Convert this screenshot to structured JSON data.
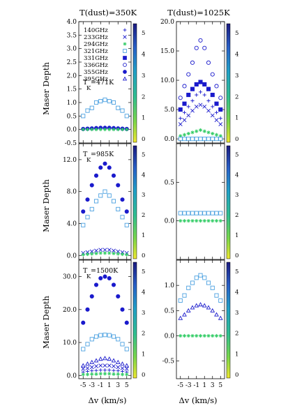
{
  "columns": [
    {
      "title": "T(dust)=350K"
    },
    {
      "title": "T(dust)=1025K"
    }
  ],
  "ylabel": "Maser Depth",
  "xlabel": "Δv (km/s)",
  "xticks": [
    "-5",
    "-3",
    "-1",
    "1",
    "3",
    "5"
  ],
  "colorbar_ticks": [
    "0",
    "1",
    "2",
    "3",
    "4",
    "5"
  ],
  "legend": [
    {
      "label": "140GHz",
      "marker": "plus"
    },
    {
      "label": "233GHz",
      "marker": "cross"
    },
    {
      "label": "294GHz",
      "marker": "star"
    },
    {
      "label": "321GHz",
      "marker": "square-open"
    },
    {
      "label": "331GHz",
      "marker": "square-filled"
    },
    {
      "label": "336GHz",
      "marker": "circle-open"
    },
    {
      "label": "355GHz",
      "marker": "circle-filled"
    },
    {
      "label": "395GHz",
      "marker": "triangle-open"
    }
  ],
  "colors": {
    "blue": "#1a1acc",
    "lightblue": "#4aa0e0",
    "green": "#33cc66",
    "darkblue": "#1a1a99"
  },
  "chart_data": [
    {
      "type": "scatter",
      "panel": "row1-col1",
      "tk_label": "T",
      "tk_sub": "K",
      "tk_value": "=471K",
      "ylim": [
        -0.5,
        4.0
      ],
      "yticks": [
        "-0.5",
        "0.0",
        "0.5",
        "1.0",
        "1.5",
        "2.0",
        "2.5",
        "3.0",
        "3.5",
        "4.0"
      ],
      "x": [
        -5,
        -4,
        -3,
        -2,
        -1,
        0,
        1,
        2,
        3,
        4,
        5
      ],
      "series": [
        {
          "name": "321GHz",
          "values": [
            0.5,
            0.7,
            0.8,
            1.0,
            1.05,
            1.1,
            1.05,
            1.0,
            0.8,
            0.7,
            0.5
          ]
        },
        {
          "name": "355GHz",
          "values": [
            0.02,
            0.03,
            0.04,
            0.05,
            0.06,
            0.06,
            0.06,
            0.05,
            0.04,
            0.03,
            0.02
          ]
        },
        {
          "name": "294GHz",
          "values": [
            0.0,
            0.0,
            0.0,
            0.0,
            0.0,
            0.0,
            0.0,
            0.0,
            0.0,
            0.0,
            0.0
          ]
        }
      ]
    },
    {
      "type": "scatter",
      "panel": "row1-col2",
      "ylim": [
        -0.7,
        20.0
      ],
      "yticks": [
        "0.0",
        "5.0",
        "10.0",
        "15.0",
        "20.0"
      ],
      "x": [
        -5,
        -4,
        -3,
        -2,
        -1,
        0,
        1,
        2,
        3,
        4,
        5
      ],
      "series": [
        {
          "name": "336GHz",
          "values": [
            7.0,
            9.0,
            11.0,
            13.0,
            15.5,
            16.8,
            15.5,
            13.0,
            11.0,
            9.0,
            7.0
          ]
        },
        {
          "name": "331GHz",
          "values": [
            5.0,
            6.0,
            7.5,
            8.5,
            9.3,
            9.7,
            9.3,
            8.5,
            7.5,
            6.0,
            5.0
          ]
        },
        {
          "name": "140GHz",
          "values": [
            3.5,
            4.5,
            5.5,
            6.5,
            7.5,
            8.0,
            7.5,
            6.5,
            5.5,
            4.5,
            3.5
          ]
        },
        {
          "name": "233GHz",
          "values": [
            2.5,
            3.2,
            4.0,
            4.8,
            5.5,
            5.8,
            5.5,
            4.8,
            4.0,
            3.2,
            2.5
          ]
        },
        {
          "name": "294GHz",
          "values": [
            0.5,
            0.7,
            0.9,
            1.1,
            1.3,
            1.5,
            1.3,
            1.1,
            0.9,
            0.7,
            0.5
          ]
        },
        {
          "name": "321GHz",
          "values": [
            0.0,
            0.0,
            0.0,
            0.0,
            0.0,
            0.0,
            0.0,
            0.0,
            0.0,
            0.0,
            0.0
          ]
        }
      ]
    },
    {
      "type": "scatter",
      "panel": "row2-col1",
      "tk_label": "T",
      "tk_sub": "K",
      "tk_value": "=985K",
      "ylim": [
        -0.5,
        14.0
      ],
      "yticks": [
        "0.0",
        "4.0",
        "8.0",
        "12.0"
      ],
      "x": [
        -5,
        -4,
        -3,
        -2,
        -1,
        0,
        1,
        2,
        3,
        4,
        5
      ],
      "series": [
        {
          "name": "355GHz",
          "values": [
            5.5,
            7.0,
            8.8,
            10.0,
            11.0,
            11.5,
            11.0,
            10.0,
            8.8,
            7.0,
            5.5
          ]
        },
        {
          "name": "321GHz",
          "values": [
            3.8,
            4.8,
            5.8,
            6.8,
            7.5,
            8.0,
            7.5,
            6.8,
            5.8,
            4.8,
            3.8
          ]
        },
        {
          "name": "233GHz",
          "values": [
            0.3,
            0.4,
            0.5,
            0.6,
            0.7,
            0.7,
            0.7,
            0.6,
            0.5,
            0.4,
            0.3
          ]
        },
        {
          "name": "294GHz",
          "values": [
            0.1,
            0.15,
            0.2,
            0.25,
            0.3,
            0.3,
            0.3,
            0.25,
            0.2,
            0.15,
            0.1
          ]
        }
      ]
    },
    {
      "type": "scatter",
      "panel": "row2-col2",
      "ylim": [
        -0.5,
        1.0
      ],
      "yticks": [
        "0.0",
        "0.5"
      ],
      "x": [
        -5,
        -4,
        -3,
        -2,
        -1,
        0,
        1,
        2,
        3,
        4,
        5
      ],
      "series": [
        {
          "name": "321GHz",
          "values": [
            0.1,
            0.1,
            0.1,
            0.1,
            0.1,
            0.1,
            0.1,
            0.1,
            0.1,
            0.1,
            0.1
          ]
        },
        {
          "name": "294GHz",
          "values": [
            0.0,
            0.0,
            0.0,
            0.0,
            0.0,
            0.0,
            0.0,
            0.0,
            0.0,
            0.0,
            0.0
          ]
        }
      ]
    },
    {
      "type": "scatter",
      "panel": "row3-col1",
      "tk_label": "T",
      "tk_sub": "K",
      "tk_value": "=1500K",
      "ylim": [
        -1.0,
        35.0
      ],
      "yticks": [
        "0.0",
        "10.0",
        "20.0",
        "30.0"
      ],
      "x": [
        -5,
        -4,
        -3,
        -2,
        -1,
        0,
        1,
        2,
        3,
        4,
        5
      ],
      "series": [
        {
          "name": "355GHz",
          "values": [
            16.0,
            20.0,
            24.0,
            27.5,
            29.5,
            30.0,
            29.5,
            27.5,
            24.0,
            20.0,
            16.0
          ]
        },
        {
          "name": "321GHz",
          "values": [
            8.0,
            9.5,
            11.0,
            11.8,
            12.2,
            12.3,
            12.2,
            11.8,
            11.0,
            9.5,
            8.0
          ]
        },
        {
          "name": "395GHz",
          "values": [
            3.0,
            3.5,
            4.0,
            4.5,
            5.0,
            5.2,
            5.0,
            4.5,
            4.0,
            3.5,
            3.0
          ]
        },
        {
          "name": "233GHz",
          "values": [
            2.0,
            2.2,
            2.5,
            2.8,
            3.0,
            3.0,
            3.0,
            2.8,
            2.5,
            2.2,
            2.0
          ]
        },
        {
          "name": "140GHz",
          "values": [
            1.0,
            1.2,
            1.4,
            1.5,
            1.6,
            1.6,
            1.6,
            1.5,
            1.4,
            1.2,
            1.0
          ]
        },
        {
          "name": "294GHz",
          "values": [
            0.3,
            0.3,
            0.4,
            0.4,
            0.5,
            0.5,
            0.5,
            0.4,
            0.4,
            0.3,
            0.3
          ]
        }
      ]
    },
    {
      "type": "scatter",
      "panel": "row3-col2",
      "ylim": [
        -0.85,
        1.5
      ],
      "yticks": [
        "-0.5",
        "0.0",
        "0.5",
        "1.0"
      ],
      "x": [
        -5,
        -4,
        -3,
        -2,
        -1,
        0,
        1,
        2,
        3,
        4,
        5
      ],
      "series": [
        {
          "name": "321GHz",
          "values": [
            0.7,
            0.8,
            0.95,
            1.05,
            1.15,
            1.2,
            1.15,
            1.05,
            0.95,
            0.8,
            0.7
          ]
        },
        {
          "name": "395GHz",
          "values": [
            0.35,
            0.42,
            0.5,
            0.56,
            0.6,
            0.62,
            0.6,
            0.56,
            0.5,
            0.42,
            0.35
          ]
        },
        {
          "name": "294GHz",
          "values": [
            0.0,
            0.0,
            0.0,
            0.0,
            0.0,
            0.0,
            0.0,
            0.0,
            0.0,
            0.0,
            0.0
          ]
        }
      ]
    }
  ]
}
